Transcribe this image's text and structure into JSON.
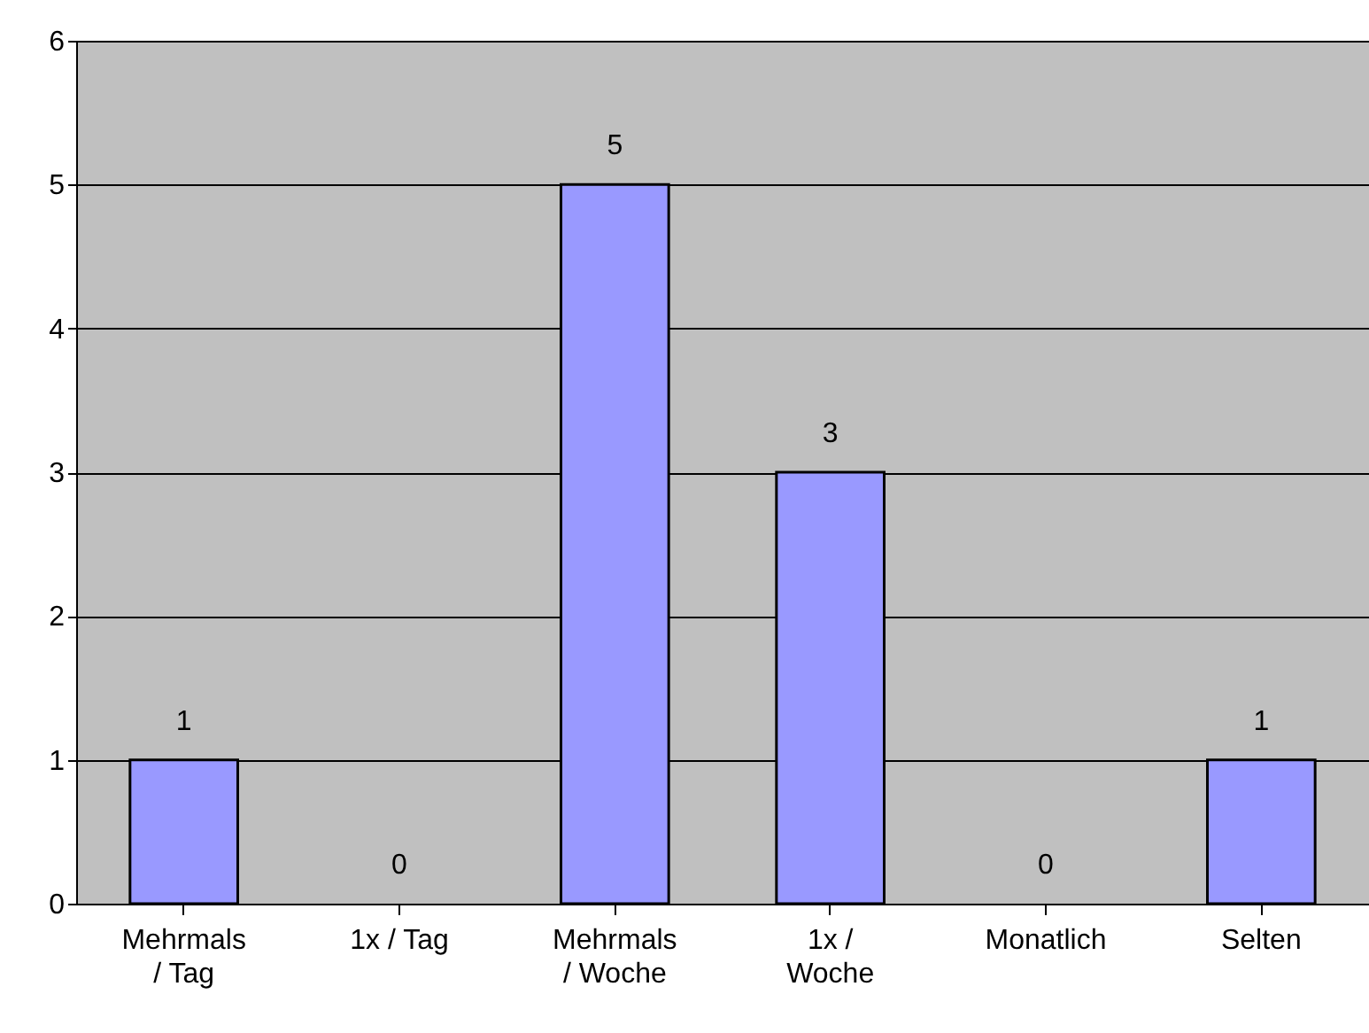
{
  "chart_data": {
    "type": "bar",
    "categories": [
      "Mehrmals / Tag",
      "1x / Tag",
      "Mehrmals / Woche",
      "1x / Woche",
      "Monatlich",
      "Selten"
    ],
    "values": [
      1,
      0,
      5,
      3,
      0,
      1
    ],
    "color": "#9999ff",
    "ylim": [
      0,
      6
    ],
    "yticks": [
      0,
      1,
      2,
      3,
      4,
      5,
      6
    ],
    "grid": "y",
    "data_labels": true
  }
}
